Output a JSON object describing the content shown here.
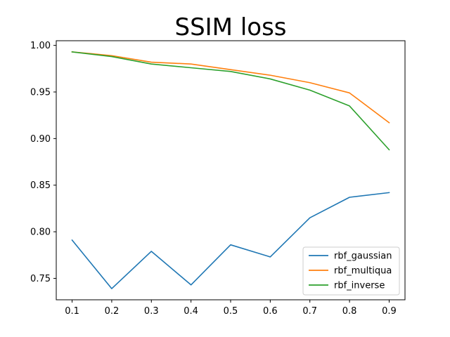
{
  "chart_data": {
    "type": "line",
    "title": "SSIM loss",
    "xlabel": "",
    "ylabel": "",
    "x": [
      0.1,
      0.2,
      0.3,
      0.4,
      0.5,
      0.6,
      0.7,
      0.8,
      0.9
    ],
    "x_tick_labels": [
      "0.1",
      "0.2",
      "0.3",
      "0.4",
      "0.5",
      "0.6",
      "0.7",
      "0.8",
      "0.9"
    ],
    "y_ticks": [
      0.75,
      0.8,
      0.85,
      0.9,
      0.95,
      1.0
    ],
    "y_tick_labels": [
      "0.75",
      "0.80",
      "0.85",
      "0.90",
      "0.95",
      "1.00"
    ],
    "xlim": [
      0.06,
      0.94
    ],
    "ylim": [
      0.727,
      1.005
    ],
    "grid": false,
    "legend_position": "lower-right",
    "series": [
      {
        "name": "rbf_gaussian",
        "color": "#1f77b4",
        "values": [
          0.791,
          0.739,
          0.779,
          0.743,
          0.786,
          0.773,
          0.815,
          0.837,
          0.842
        ]
      },
      {
        "name": "rbf_multiqua",
        "color": "#ff7f0e",
        "values": [
          0.993,
          0.989,
          0.982,
          0.98,
          0.974,
          0.968,
          0.96,
          0.949,
          0.917
        ]
      },
      {
        "name": "rbf_inverse",
        "color": "#2ca02c",
        "values": [
          0.993,
          0.988,
          0.98,
          0.976,
          0.972,
          0.964,
          0.952,
          0.935,
          0.888
        ]
      }
    ]
  }
}
